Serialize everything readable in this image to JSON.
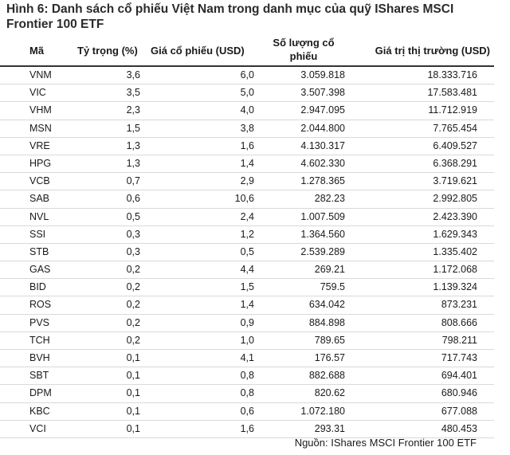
{
  "caption": "Hình 6: Danh sách cổ phiếu Việt Nam trong danh mục của quỹ IShares MSCI Frontier 100 ETF",
  "headers": [
    "Mã",
    "Tỷ trọng (%)",
    "Giá cổ phiếu (USD)",
    "Số lượng cổ phiếu",
    "Giá trị thị trường (USD)"
  ],
  "rows": [
    [
      "VNM",
      "3,6",
      "6,0",
      "3.059.818",
      "18.333.716"
    ],
    [
      "VIC",
      "3,5",
      "5,0",
      "3.507.398",
      "17.583.481"
    ],
    [
      "VHM",
      "2,3",
      "4,0",
      "2.947.095",
      "11.712.919"
    ],
    [
      "MSN",
      "1,5",
      "3,8",
      "2.044.800",
      "7.765.454"
    ],
    [
      "VRE",
      "1,3",
      "1,6",
      "4.130.317",
      "6.409.527"
    ],
    [
      "HPG",
      "1,3",
      "1,4",
      "4.602.330",
      "6.368.291"
    ],
    [
      "VCB",
      "0,7",
      "2,9",
      "1.278.365",
      "3.719.621"
    ],
    [
      "SAB",
      "0,6",
      "10,6",
      "282.23",
      "2.992.805"
    ],
    [
      "NVL",
      "0,5",
      "2,4",
      "1.007.509",
      "2.423.390"
    ],
    [
      "SSI",
      "0,3",
      "1,2",
      "1.364.560",
      "1.629.343"
    ],
    [
      "STB",
      "0,3",
      "0,5",
      "2.539.289",
      "1.335.402"
    ],
    [
      "GAS",
      "0,2",
      "4,4",
      "269.21",
      "1.172.068"
    ],
    [
      "BID",
      "0,2",
      "1,5",
      "759.5",
      "1.139.324"
    ],
    [
      "ROS",
      "0,2",
      "1,4",
      "634.042",
      "873.231"
    ],
    [
      "PVS",
      "0,2",
      "0,9",
      "884.898",
      "808.666"
    ],
    [
      "TCH",
      "0,2",
      "1,0",
      "789.65",
      "798.211"
    ],
    [
      "BVH",
      "0,1",
      "4,1",
      "176.57",
      "717.743"
    ],
    [
      "SBT",
      "0,1",
      "0,8",
      "882.688",
      "694.401"
    ],
    [
      "DPM",
      "0,1",
      "0,8",
      "820.62",
      "680.946"
    ],
    [
      "KBC",
      "0,1",
      "0,6",
      "1.072.180",
      "677.088"
    ],
    [
      "VCI",
      "0,1",
      "1,6",
      "293.31",
      "480.453"
    ]
  ],
  "source": "Nguồn: IShares MSCI Frontier 100 ETF"
}
